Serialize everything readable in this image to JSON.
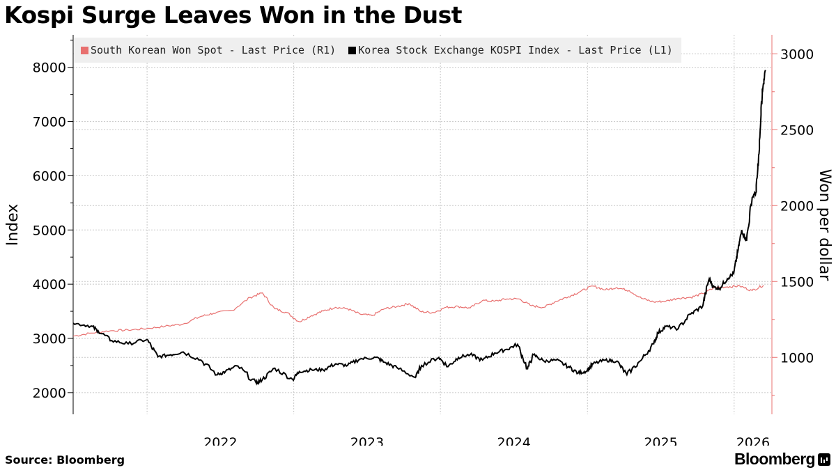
{
  "title": "Kospi Surge Leaves Won in the Dust",
  "source": "Source: Bloomberg",
  "brand": "Bloomberg",
  "colors": {
    "won": "#e8706f",
    "kospi": "#000000",
    "right_axis": "#e8706f",
    "grid": "#c8c8c8"
  },
  "chart_data": {
    "type": "line",
    "title": "Kospi Surge Leaves Won in the Dust",
    "ylabel": "Index",
    "y2label": "Won per dollar",
    "ylim": [
      1600,
      8600
    ],
    "y2lim": [
      625,
      3125
    ],
    "yticks": [
      2000,
      3000,
      4000,
      5000,
      6000,
      7000,
      8000
    ],
    "y2ticks": [
      1000,
      1500,
      2000,
      2500,
      3000
    ],
    "xlim": [
      "2021-07-01",
      "2026-04-05"
    ],
    "xticks": [
      "2022",
      "2023",
      "2024",
      "2025",
      "2026"
    ],
    "grid": true,
    "legend_position": "top-left",
    "series": [
      {
        "name": "South Korean Won Spot - Last Price (R1)",
        "axis": "right",
        "x": [
          "2021-07-01",
          "2021-08-15",
          "2021-10-01",
          "2021-11-15",
          "2022-01-01",
          "2022-02-15",
          "2022-04-01",
          "2022-05-15",
          "2022-06-15",
          "2022-08-01",
          "2022-09-15",
          "2022-10-15",
          "2022-11-15",
          "2022-12-15",
          "2023-01-15",
          "2023-02-15",
          "2023-03-15",
          "2023-04-15",
          "2023-05-15",
          "2023-06-15",
          "2023-07-15",
          "2023-08-15",
          "2023-09-15",
          "2023-10-15",
          "2023-11-15",
          "2023-12-15",
          "2024-01-15",
          "2024-02-15",
          "2024-03-15",
          "2024-04-15",
          "2024-05-15",
          "2024-06-15",
          "2024-07-15",
          "2024-08-15",
          "2024-09-15",
          "2024-10-15",
          "2024-11-15",
          "2024-12-15",
          "2025-01-15",
          "2025-02-15",
          "2025-03-15",
          "2025-04-15",
          "2025-05-15",
          "2025-06-15",
          "2025-07-15",
          "2025-08-15",
          "2025-09-15",
          "2025-10-15",
          "2025-11-15",
          "2025-12-15",
          "2026-01-15",
          "2026-02-15",
          "2026-03-15"
        ],
        "values": [
          1140,
          1160,
          1175,
          1180,
          1190,
          1205,
          1220,
          1270,
          1290,
          1310,
          1395,
          1425,
          1320,
          1295,
          1235,
          1275,
          1305,
          1330,
          1320,
          1285,
          1275,
          1320,
          1335,
          1355,
          1300,
          1295,
          1330,
          1335,
          1325,
          1375,
          1370,
          1385,
          1385,
          1340,
          1330,
          1370,
          1400,
          1435,
          1470,
          1445,
          1460,
          1440,
          1390,
          1365,
          1370,
          1390,
          1395,
          1420,
          1460,
          1465,
          1470,
          1440,
          1475
        ]
      },
      {
        "name": "Korea Stock Exchange KOSPI Index - Last Price (L1)",
        "axis": "left",
        "x": [
          "2021-07-01",
          "2021-08-15",
          "2021-09-01",
          "2021-10-05",
          "2021-11-15",
          "2022-01-01",
          "2022-01-28",
          "2022-03-01",
          "2022-04-01",
          "2022-05-15",
          "2022-06-25",
          "2022-07-15",
          "2022-08-15",
          "2022-09-30",
          "2022-10-15",
          "2022-11-15",
          "2022-12-30",
          "2023-01-15",
          "2023-02-15",
          "2023-03-15",
          "2023-04-15",
          "2023-05-15",
          "2023-06-15",
          "2023-07-25",
          "2023-08-15",
          "2023-09-15",
          "2023-10-31",
          "2023-11-15",
          "2023-12-28",
          "2024-01-20",
          "2024-02-15",
          "2024-03-15",
          "2024-04-15",
          "2024-05-15",
          "2024-06-15",
          "2024-07-11",
          "2024-08-05",
          "2024-08-20",
          "2024-09-15",
          "2024-10-15",
          "2024-11-15",
          "2024-12-09",
          "2024-12-31",
          "2025-01-15",
          "2025-02-15",
          "2025-03-15",
          "2025-04-09",
          "2025-05-15",
          "2025-06-15",
          "2025-06-25",
          "2025-07-15",
          "2025-08-15",
          "2025-09-15",
          "2025-10-15",
          "2025-10-31",
          "2025-11-10",
          "2025-11-25",
          "2025-12-15",
          "2025-12-31",
          "2026-01-10",
          "2026-01-20",
          "2026-02-01",
          "2026-02-15",
          "2026-02-25",
          "2026-03-05",
          "2026-03-12",
          "2026-03-20"
        ],
        "values": [
          3280,
          3230,
          3140,
          2960,
          2900,
          2980,
          2660,
          2700,
          2750,
          2600,
          2330,
          2390,
          2490,
          2170,
          2240,
          2450,
          2240,
          2390,
          2420,
          2420,
          2530,
          2500,
          2620,
          2650,
          2560,
          2460,
          2280,
          2500,
          2650,
          2480,
          2650,
          2700,
          2600,
          2730,
          2800,
          2890,
          2440,
          2700,
          2580,
          2600,
          2480,
          2360,
          2400,
          2530,
          2600,
          2580,
          2330,
          2600,
          2900,
          3100,
          3220,
          3180,
          3450,
          3600,
          4100,
          3950,
          3920,
          4100,
          4200,
          4600,
          5000,
          4800,
          5600,
          5700,
          6500,
          7500,
          7950
        ]
      }
    ]
  }
}
